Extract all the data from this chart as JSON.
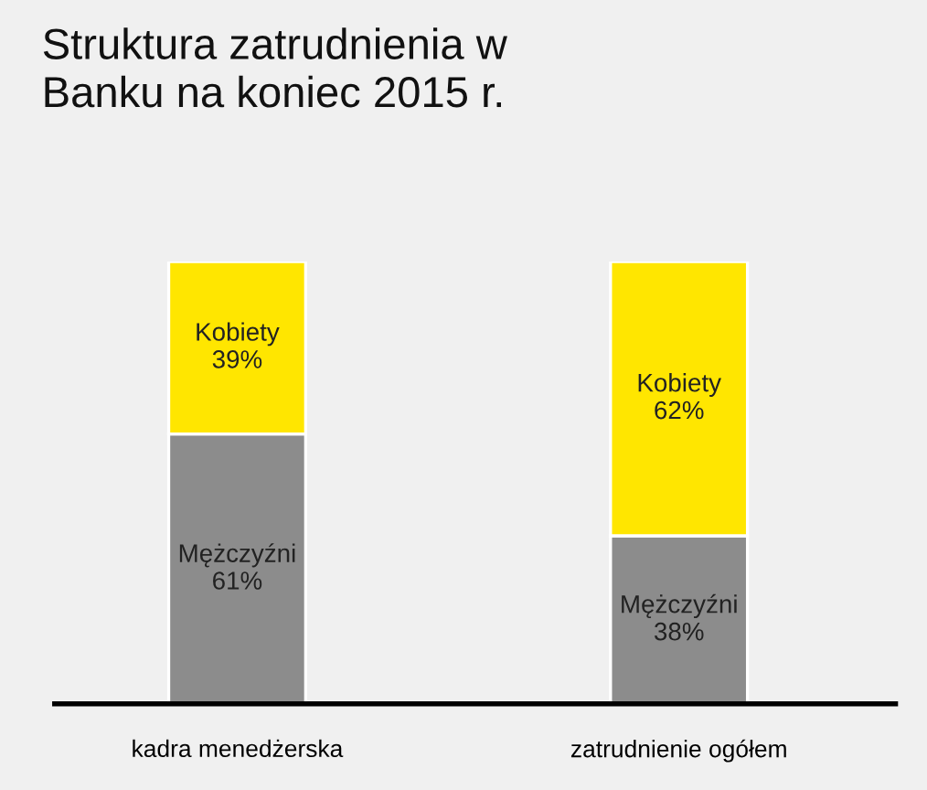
{
  "chart_data": {
    "type": "bar",
    "title": "Struktura zatrudnienia w\nBanku na koniec 2015 r.",
    "categories": [
      "kadra menedżerska",
      "zatrudnienie ogółem"
    ],
    "stacked": true,
    "series": [
      {
        "name": "Mężczyźni",
        "color": "#8c8c8c",
        "values": [
          61,
          38
        ],
        "value_labels": [
          "61%",
          "38%"
        ]
      },
      {
        "name": "Kobiety",
        "color": "#ffe600",
        "values": [
          39,
          62
        ],
        "value_labels": [
          "39%",
          "62%"
        ]
      }
    ]
  }
}
